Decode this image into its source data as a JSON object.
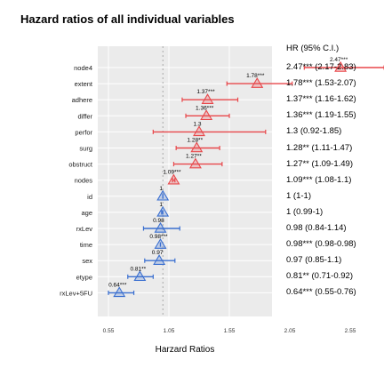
{
  "chart_data": {
    "type": "forest",
    "title": "Hazard ratios of all individual variables",
    "xlabel": "Harzard Ratios",
    "ylabel": "",
    "x_ticks": [
      0.55,
      1.05,
      1.55,
      2.05,
      2.55
    ],
    "x_tick_labels": [
      "0.55",
      "1.05",
      "1.55",
      "2.05",
      "2.55"
    ],
    "xlim": [
      0.55,
      2.9
    ],
    "reference_line": 1,
    "ci_header": "HR (95% C.I.)",
    "colors": {
      "hr_above_1": "#e8474a",
      "hr_below_or_equal_1": "#3a6fd0",
      "panel": "#ebebeb",
      "grid": "#ffffff"
    },
    "rows": [
      {
        "variable": "node4",
        "hr": 2.47,
        "lo": 2.17,
        "hi": 2.83,
        "label": "2.47***",
        "ci_text": "2.47*** (2.17-2.83)"
      },
      {
        "variable": "extent",
        "hr": 1.78,
        "lo": 1.53,
        "hi": 2.07,
        "label": "1.78***",
        "ci_text": "1.78*** (1.53-2.07)"
      },
      {
        "variable": "adhere",
        "hr": 1.37,
        "lo": 1.16,
        "hi": 1.62,
        "label": "1.37***",
        "ci_text": "1.37*** (1.16-1.62)"
      },
      {
        "variable": "differ",
        "hr": 1.36,
        "lo": 1.19,
        "hi": 1.55,
        "label": "1.36***",
        "ci_text": "1.36*** (1.19-1.55)"
      },
      {
        "variable": "perfor",
        "hr": 1.3,
        "lo": 0.92,
        "hi": 1.85,
        "label": "1.3",
        "ci_text": "1.3 (0.92-1.85)"
      },
      {
        "variable": "surg",
        "hr": 1.28,
        "lo": 1.11,
        "hi": 1.47,
        "label": "1.28**",
        "ci_text": "1.28** (1.11-1.47)"
      },
      {
        "variable": "obstruct",
        "hr": 1.27,
        "lo": 1.09,
        "hi": 1.49,
        "label": "1.27**",
        "ci_text": "1.27** (1.09-1.49)"
      },
      {
        "variable": "nodes",
        "hr": 1.09,
        "lo": 1.08,
        "hi": 1.1,
        "label": "1.09***",
        "ci_text": "1.09*** (1.08-1.1)"
      },
      {
        "variable": "id",
        "hr": 1,
        "lo": 1,
        "hi": 1,
        "label": "1",
        "ci_text": "1 (1-1)"
      },
      {
        "variable": "age",
        "hr": 1,
        "lo": 0.99,
        "hi": 1,
        "label": "1",
        "ci_text": "1 (0.99-1)"
      },
      {
        "variable": "rxLev",
        "hr": 0.98,
        "lo": 0.84,
        "hi": 1.14,
        "label": "0.98",
        "ci_text": "0.98 (0.84-1.14)"
      },
      {
        "variable": "time",
        "hr": 0.98,
        "lo": 0.98,
        "hi": 0.98,
        "label": "0.98***",
        "ci_text": "0.98*** (0.98-0.98)"
      },
      {
        "variable": "sex",
        "hr": 0.97,
        "lo": 0.85,
        "hi": 1.1,
        "label": "0.97",
        "ci_text": "0.97 (0.85-1.1)"
      },
      {
        "variable": "etype",
        "hr": 0.81,
        "lo": 0.71,
        "hi": 0.92,
        "label": "0.81**",
        "ci_text": "0.81** (0.71-0.92)"
      },
      {
        "variable": "rxLev+5FU",
        "hr": 0.64,
        "lo": 0.55,
        "hi": 0.76,
        "label": "0.64***",
        "ci_text": "0.64*** (0.55-0.76)"
      }
    ]
  }
}
